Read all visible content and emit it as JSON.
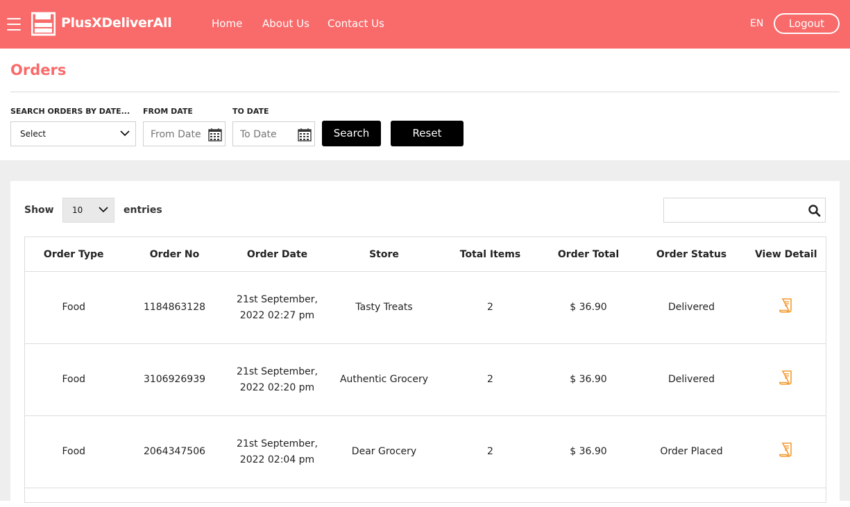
{
  "brand": {
    "name": "PlusXDeliverAll"
  },
  "nav": {
    "items": [
      "Home",
      "About Us",
      "Contact Us"
    ]
  },
  "header": {
    "lang": "EN",
    "logout": "Logout"
  },
  "page": {
    "title": "Orders"
  },
  "filters": {
    "search_by_label": "SEARCH ORDERS BY DATE...",
    "search_by_value": "Select",
    "from_label": "FROM DATE",
    "from_placeholder": "From Date",
    "to_label": "TO DATE",
    "to_placeholder": "To Date",
    "search_button": "Search",
    "reset_button": "Reset"
  },
  "table_controls": {
    "show_label": "Show",
    "entries_value": "10",
    "entries_label": "entries"
  },
  "table": {
    "columns": [
      "Order Type",
      "Order No",
      "Order Date",
      "Store",
      "Total Items",
      "Order Total",
      "Order Status",
      "View Detail"
    ],
    "rows": [
      {
        "type": "Food",
        "no": "1184863128",
        "date": "21st September, 2022 02:27 pm",
        "store": "Tasty Treats",
        "items": "2",
        "total": "$ 36.90",
        "status": "Delivered"
      },
      {
        "type": "Food",
        "no": "3106926939",
        "date": "21st September, 2022 02:20 pm",
        "store": "Authentic Grocery",
        "items": "2",
        "total": "$ 36.90",
        "status": "Delivered"
      },
      {
        "type": "Food",
        "no": "2064347506",
        "date": "21st September, 2022 02:04 pm",
        "store": "Dear Grocery",
        "items": "2",
        "total": "$ 36.90",
        "status": "Order Placed"
      }
    ]
  },
  "colors": {
    "brand": "#f96a6a",
    "icon_accent": "#f39a2e"
  }
}
